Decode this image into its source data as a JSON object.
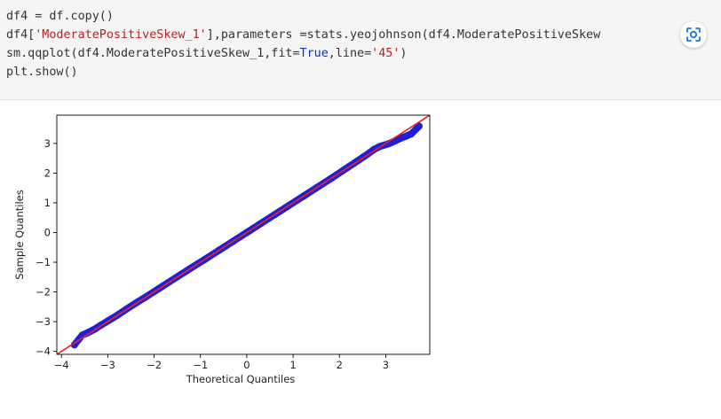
{
  "notebook": {
    "code_lines": [
      [
        {
          "t": "df4 = df.copy()"
        }
      ],
      [
        {
          "t": "df4["
        },
        {
          "t": "'ModeratePositiveSkew_1'",
          "c": "str"
        },
        {
          "t": "],parameters =stats.yeojohnson(df4.ModeratePositiveSkew"
        }
      ],
      [
        {
          "t": "sm.qqplot(df4.ModeratePositiveSkew_1,fit="
        },
        {
          "t": "True",
          "c": "kw"
        },
        {
          "t": ",line="
        },
        {
          "t": "'45'",
          "c": "str"
        },
        {
          "t": ")"
        }
      ],
      [
        {
          "t": "plt.show()"
        }
      ]
    ],
    "lens_icon": "google-lens-icon"
  },
  "chart_data": {
    "type": "scatter",
    "xlabel": "Theoretical Quantiles",
    "ylabel": "Sample Quantiles",
    "xlim": [
      -4.1,
      3.95
    ],
    "ylim": [
      -4.1,
      3.95
    ],
    "xticks": [
      -4,
      -3,
      -2,
      -1,
      0,
      1,
      2,
      3
    ],
    "yticks": [
      -4,
      -3,
      -2,
      -1,
      0,
      1,
      2,
      3
    ],
    "xtick_labels": [
      "−4",
      "−3",
      "−2",
      "−1",
      "0",
      "1",
      "2",
      "3"
    ],
    "ytick_labels": [
      "−4",
      "−3",
      "−2",
      "−1",
      "0",
      "1",
      "2",
      "3"
    ],
    "grid": false,
    "reference_line": {
      "type": "45-degree",
      "color": "#e8261e"
    },
    "point_color": "#1f1fd6",
    "series": [
      {
        "points": [
          [
            -3.72,
            -3.78
          ],
          [
            -3.55,
            -3.45
          ],
          [
            -3.47,
            -3.4
          ],
          [
            -3.38,
            -3.33
          ],
          [
            -3.28,
            -3.25
          ],
          [
            -3.15,
            -3.12
          ],
          [
            -3.0,
            -2.98
          ],
          [
            -2.8,
            -2.79
          ],
          [
            -2.6,
            -2.58
          ],
          [
            -2.4,
            -2.38
          ],
          [
            -2.2,
            -2.19
          ],
          [
            -2.0,
            -1.99
          ],
          [
            -1.8,
            -1.79
          ],
          [
            -1.5,
            -1.49
          ],
          [
            -1.2,
            -1.19
          ],
          [
            -0.9,
            -0.9
          ],
          [
            -0.6,
            -0.6
          ],
          [
            -0.3,
            -0.3
          ],
          [
            0.0,
            0.0
          ],
          [
            0.3,
            0.3
          ],
          [
            0.6,
            0.6
          ],
          [
            0.9,
            0.9
          ],
          [
            1.2,
            1.2
          ],
          [
            1.5,
            1.5
          ],
          [
            1.8,
            1.8
          ],
          [
            2.1,
            2.11
          ],
          [
            2.4,
            2.42
          ],
          [
            2.6,
            2.63
          ],
          [
            2.75,
            2.8
          ],
          [
            2.88,
            2.9
          ],
          [
            3.05,
            2.98
          ],
          [
            3.2,
            3.08
          ],
          [
            3.33,
            3.18
          ],
          [
            3.45,
            3.25
          ],
          [
            3.55,
            3.32
          ],
          [
            3.72,
            3.58
          ]
        ]
      }
    ]
  }
}
